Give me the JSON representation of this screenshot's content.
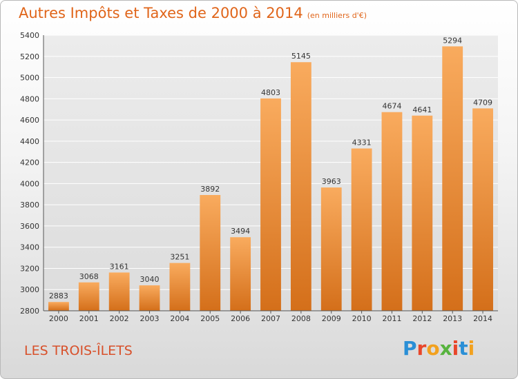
{
  "header": {
    "title": "Autres Impôts et Taxes de 2000 à 2014",
    "unit": "(en milliers d'€)"
  },
  "footer": {
    "commune": "LES TROIS-ÎLETS",
    "brand": "Proxiti"
  },
  "colors": {
    "title": "#e0651a",
    "bar_light": "#f8a85a",
    "bar_dark": "#d9741e",
    "grid": "#ffffff",
    "axis": "#555555"
  },
  "chart_data": {
    "type": "bar",
    "title": "Autres Impôts et Taxes de 2000 à 2014",
    "xlabel": "",
    "ylabel": "",
    "categories": [
      "2000",
      "2001",
      "2002",
      "2003",
      "2004",
      "2005",
      "2006",
      "2007",
      "2008",
      "2009",
      "2010",
      "2011",
      "2012",
      "2013",
      "2014"
    ],
    "values": [
      2883,
      3068,
      3161,
      3040,
      3251,
      3892,
      3494,
      4803,
      5145,
      3963,
      4331,
      4674,
      4641,
      5294,
      4709
    ],
    "ylim": [
      2800,
      5400
    ],
    "yticks": [
      2800,
      3000,
      3200,
      3400,
      3600,
      3800,
      4000,
      4200,
      4400,
      4600,
      4800,
      5000,
      5200,
      5400
    ],
    "grid": true,
    "data_labels": true
  }
}
